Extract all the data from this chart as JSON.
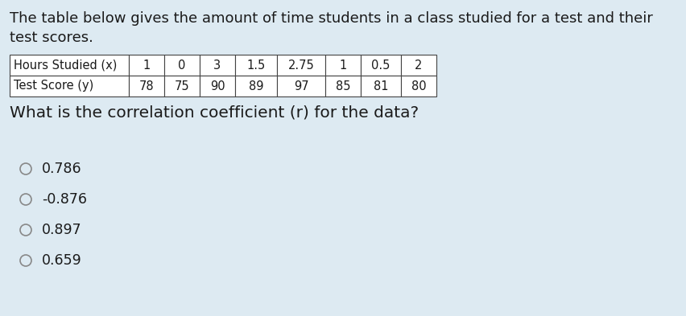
{
  "background_color": "#ddeaf2",
  "intro_text_line1": "The table below gives the amount of time students in a class studied for a test and their",
  "intro_text_line2": "test scores.",
  "table_headers": [
    "Hours Studied (x)",
    "1",
    "0",
    "3",
    "1.5",
    "2.75",
    "1",
    "0.5",
    "2"
  ],
  "table_row2": [
    "Test Score (y)",
    "78",
    "75",
    "90",
    "89",
    "97",
    "85",
    "81",
    "80"
  ],
  "question_text": "What is the correlation coefficient (r) for the data?",
  "options": [
    "0.786",
    "-0.876",
    "0.897",
    "0.659"
  ],
  "font_size_intro": 13.0,
  "font_size_table": 10.5,
  "font_size_question": 14.5,
  "font_size_options": 12.5,
  "text_color": "#1a1a1a",
  "table_border_color": "#444444",
  "table_bg_color": "#ffffff",
  "radio_color": "#888888"
}
